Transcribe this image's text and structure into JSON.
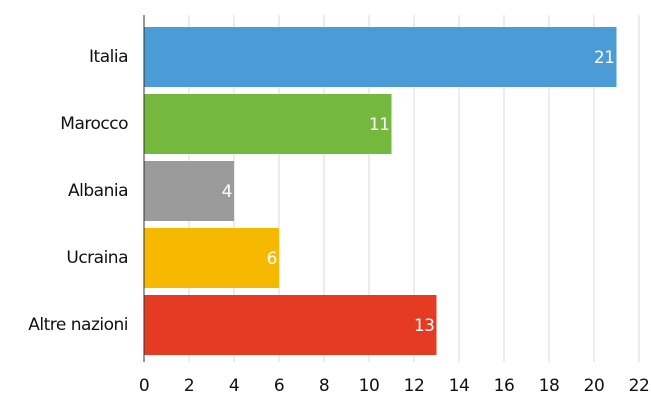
{
  "chart_data": {
    "type": "hbar",
    "categories": [
      "Italia",
      "Marocco",
      "Albania",
      "Ucraina",
      "Altre nazioni"
    ],
    "values": [
      21,
      11,
      4,
      6,
      13
    ],
    "colors": [
      "#4a9bd6",
      "#74b83d",
      "#9b9b9b",
      "#f7b900",
      "#e43b22"
    ],
    "xlim": [
      0,
      22
    ],
    "xticks": [
      0,
      2,
      4,
      6,
      8,
      10,
      12,
      14,
      16,
      18,
      20,
      22
    ],
    "grid": true
  }
}
